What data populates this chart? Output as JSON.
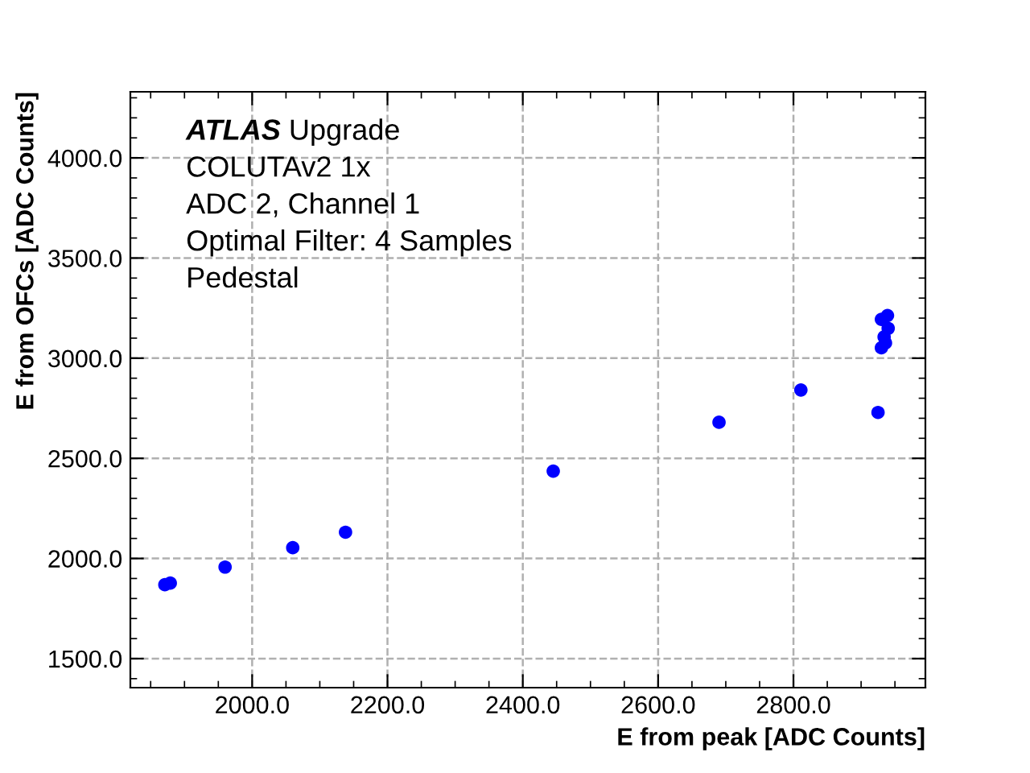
{
  "chart_data": {
    "type": "scatter",
    "xlabel": "E from peak [ADC Counts]",
    "ylabel": "E from OFCs [ADC Counts]",
    "annotations": [
      "ATLAS Upgrade",
      "COLUTAv2 1x",
      "ADC 2, Channel 1",
      "Optimal Filter: 4 Samples",
      "Pedestal"
    ],
    "x": [
      1871,
      1879,
      1960,
      2060,
      2138,
      2445,
      2690,
      2811,
      2925,
      2930,
      2936,
      2934,
      2940,
      2930,
      2939
    ],
    "series": [
      {
        "color": "#0000ff",
        "values": [
          1869,
          1877,
          1957,
          2054,
          2131,
          2436,
          2680,
          2841,
          2729,
          3052,
          3076,
          3106,
          3149,
          3194,
          3213
        ]
      }
    ],
    "xlim": [
      1820,
      2995
    ],
    "ylim": [
      1355,
      4330
    ],
    "xticks": [
      {
        "value": 2000,
        "label": "2000.0"
      },
      {
        "value": 2200,
        "label": "2200.0"
      },
      {
        "value": 2400,
        "label": "2400.0"
      },
      {
        "value": 2600,
        "label": "2600.0"
      },
      {
        "value": 2800,
        "label": "2800.0"
      }
    ],
    "yticks": [
      {
        "value": 1500,
        "label": "1500.0"
      },
      {
        "value": 2000,
        "label": "2000.0"
      },
      {
        "value": 2500,
        "label": "2500.0"
      },
      {
        "value": 3000,
        "label": "3000.0"
      },
      {
        "value": 3500,
        "label": "3500.0"
      },
      {
        "value": 4000,
        "label": "4000.0"
      }
    ],
    "grid": true,
    "marker": "circle"
  }
}
